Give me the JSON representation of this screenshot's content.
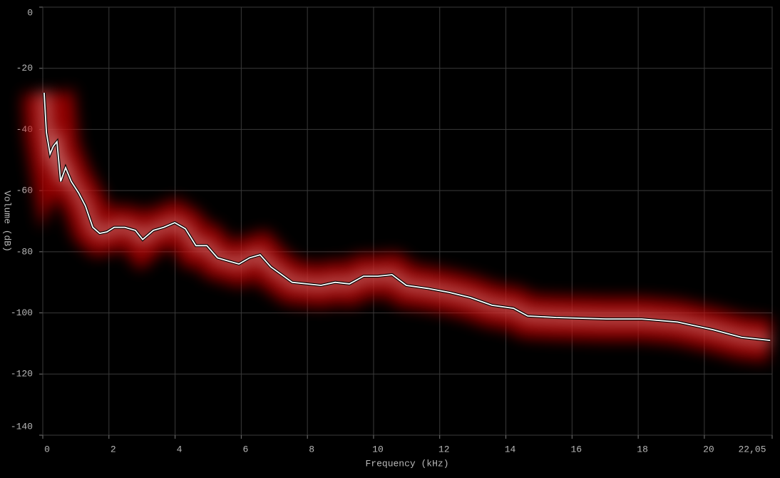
{
  "chart_data": {
    "type": "line",
    "x_label": "Frequency (kHz)",
    "y_label": "Volume (dB)",
    "xlim": [
      0,
      22.05
    ],
    "ylim": [
      -140,
      0
    ],
    "xticks": [
      0,
      2,
      4,
      6,
      8,
      10,
      12,
      14,
      16,
      18,
      20,
      {
        "value": 22.05,
        "label": "22,05"
      }
    ],
    "yticks": [
      0,
      -20,
      -40,
      -60,
      -80,
      -100,
      -120,
      -140
    ],
    "grid": true,
    "color": "#ffffff",
    "glow_color": "#c00000",
    "x": [
      0.04,
      0.11,
      0.22,
      0.32,
      0.43,
      0.54,
      0.69,
      0.86,
      1.08,
      1.29,
      1.51,
      1.72,
      1.94,
      2.16,
      2.48,
      2.8,
      3.02,
      3.34,
      3.66,
      3.99,
      4.31,
      4.63,
      4.96,
      5.28,
      5.6,
      5.93,
      6.25,
      6.57,
      6.9,
      7.22,
      7.54,
      7.98,
      8.41,
      8.84,
      9.27,
      9.7,
      10.13,
      10.56,
      10.99,
      11.64,
      12.29,
      12.93,
      13.58,
      14.23,
      14.66,
      15.52,
      17.03,
      18.11,
      19.19,
      20.26,
      21.13,
      21.99
    ],
    "values": [
      -28,
      -41,
      -48,
      -45.5,
      -44,
      -57,
      -52.5,
      -57,
      -60.7,
      -65,
      -72,
      -74,
      -73.5,
      -72,
      -72,
      -73,
      -76,
      -73,
      -72,
      -70.5,
      -72.5,
      -78,
      -78,
      -82,
      -83,
      -84,
      -82,
      -81,
      -85,
      -87.5,
      -90,
      -90.5,
      -91,
      -90,
      -90.5,
      -88,
      -88,
      -87.5,
      -91,
      -92,
      -93.3,
      -95,
      -97.5,
      -98.5,
      -101,
      -101.5,
      -102,
      -102,
      -103,
      -105.5,
      -108,
      -109
    ]
  }
}
